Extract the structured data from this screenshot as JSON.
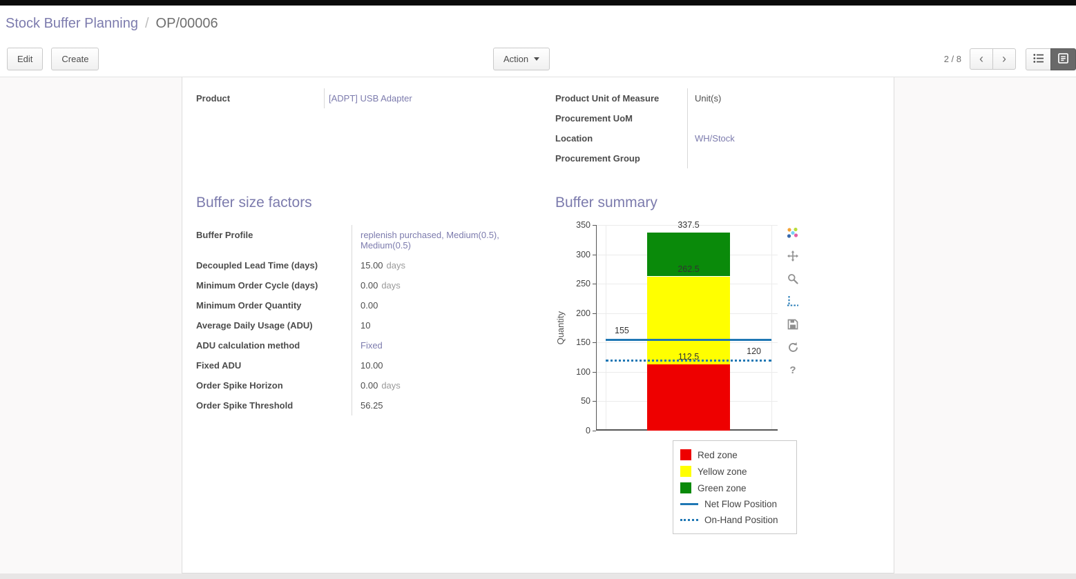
{
  "breadcrumb": {
    "parent": "Stock Buffer Planning",
    "separator": "/",
    "current": "OP/00006"
  },
  "control_panel": {
    "edit": "Edit",
    "create": "Create",
    "action": "Action",
    "pager": "2 / 8"
  },
  "icons": {
    "prev": "‹",
    "next": "›",
    "help": "?"
  },
  "form": {
    "left_fields": [
      {
        "label": "Product",
        "value": "[ADPT] USB Adapter"
      }
    ],
    "right_fields": [
      {
        "label": "Product Unit of Measure",
        "value": "Unit(s)"
      },
      {
        "label": "Procurement UoM",
        "value": ""
      },
      {
        "label": "Location",
        "value": "WH/Stock"
      },
      {
        "label": "Procurement Group",
        "value": ""
      }
    ],
    "buffer_factors": {
      "title": "Buffer size factors",
      "rows": [
        {
          "label": "Buffer Profile",
          "value": "replenish purchased, Medium(0.5), Medium(0.5)"
        },
        {
          "label": "Decoupled Lead Time (days)",
          "value": "15.00",
          "suffix": "days"
        },
        {
          "label": "Minimum Order Cycle (days)",
          "value": "0.00",
          "suffix": "days"
        },
        {
          "label": "Minimum Order Quantity",
          "value": "0.00"
        },
        {
          "label": "Average Daily Usage (ADU)",
          "value": "10"
        },
        {
          "label": "ADU calculation method",
          "value": "Fixed"
        },
        {
          "label": "Fixed ADU",
          "value": "10.00"
        },
        {
          "label": "Order Spike Horizon",
          "value": "0.00",
          "suffix": "days"
        },
        {
          "label": "Order Spike Threshold",
          "value": "56.25"
        }
      ]
    },
    "buffer_summary_title": "Buffer summary"
  },
  "chart_data": {
    "type": "bar",
    "title": "",
    "xlabel": "",
    "ylabel": "Quantity",
    "ylim": [
      0,
      350
    ],
    "ytick_step": 50,
    "grid": true,
    "zones": [
      {
        "name": "Red zone",
        "from": 0,
        "to": 112.5,
        "color": "#ee0000"
      },
      {
        "name": "Yellow zone",
        "from": 112.5,
        "to": 262.5,
        "color": "#ffff00"
      },
      {
        "name": "Green zone",
        "from": 262.5,
        "to": 337.5,
        "color": "#0a8a0a"
      }
    ],
    "annotations": [
      {
        "value": 337.5,
        "text": "337.5"
      },
      {
        "value": 262.5,
        "text": "262.5"
      },
      {
        "value": 112.5,
        "text": "112.5"
      }
    ],
    "lines": [
      {
        "name": "Net Flow Position",
        "value": 155,
        "text": "155",
        "style": "solid",
        "color": "#1f77b4",
        "label_side": "left"
      },
      {
        "name": "On-Hand Position",
        "value": 120,
        "text": "120",
        "style": "dotted",
        "color": "#1f77b4",
        "label_side": "right"
      }
    ],
    "legend_position": "bottom-right",
    "legend_items": [
      {
        "label": "Red zone",
        "swatch": "square",
        "color": "#ee0000"
      },
      {
        "label": "Yellow zone",
        "swatch": "square",
        "color": "#ffff00"
      },
      {
        "label": "Green zone",
        "swatch": "square",
        "color": "#0a8a0a"
      },
      {
        "label": "Net Flow Position",
        "swatch": "line",
        "color": "#1f77b4"
      },
      {
        "label": "On-Hand Position",
        "swatch": "dotted",
        "color": "#1f77b4"
      }
    ]
  }
}
